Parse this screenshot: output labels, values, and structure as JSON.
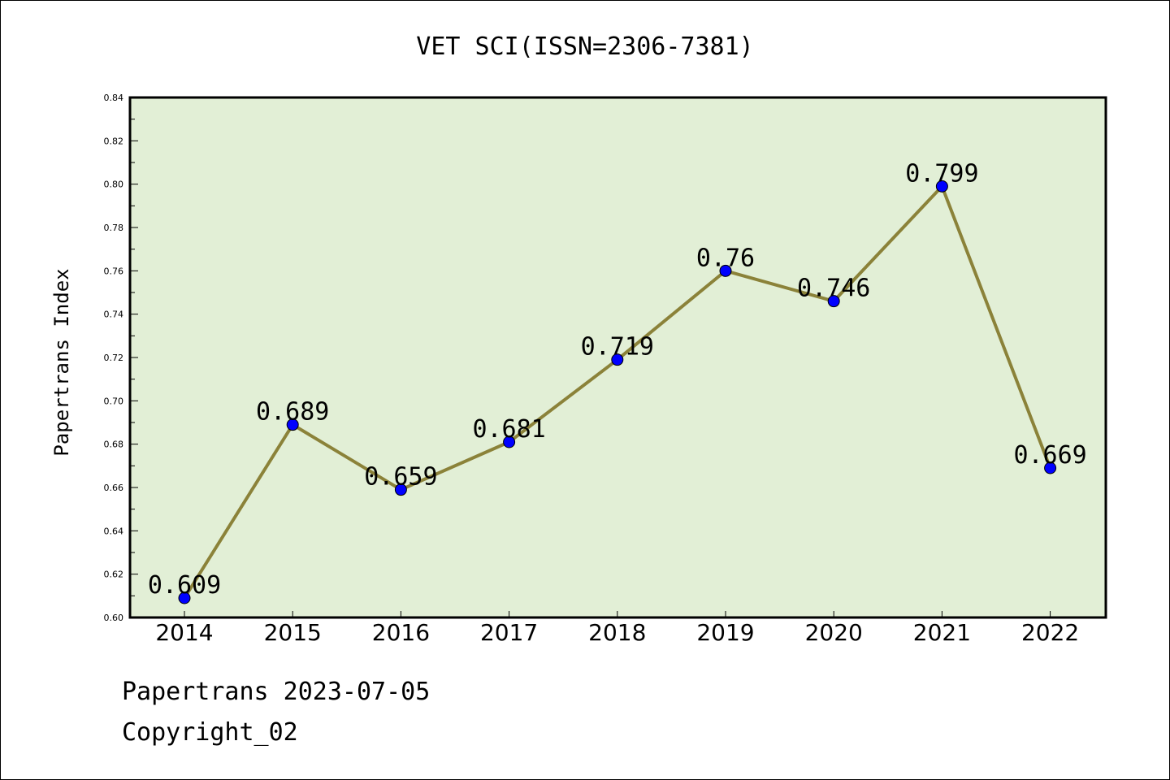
{
  "chart_data": {
    "type": "line",
    "title": "VET SCI(ISSN=2306-7381)",
    "xlabel": "",
    "ylabel": "Papertrans Index",
    "categories": [
      "2014",
      "2015",
      "2016",
      "2017",
      "2018",
      "2019",
      "2020",
      "2021",
      "2022"
    ],
    "values": [
      0.609,
      0.689,
      0.659,
      0.681,
      0.719,
      0.76,
      0.746,
      0.799,
      0.669
    ],
    "data_labels": [
      "0.609",
      "0.689",
      "0.659",
      "0.681",
      "0.719",
      "0.76",
      "0.746",
      "0.799",
      "0.669"
    ],
    "ylim": [
      0.6,
      0.84
    ],
    "yticks": [
      "0.60",
      "0.62",
      "0.64",
      "0.66",
      "0.68",
      "0.70",
      "0.72",
      "0.74",
      "0.76",
      "0.78",
      "0.80",
      "0.82",
      "0.84"
    ],
    "grid": false,
    "colors": {
      "plot_background": "#e2efd6",
      "line": "#8b8239",
      "marker": "#0000ff"
    }
  },
  "footer": {
    "line1": "Papertrans 2023-07-05",
    "line2": "Copyright_02"
  }
}
